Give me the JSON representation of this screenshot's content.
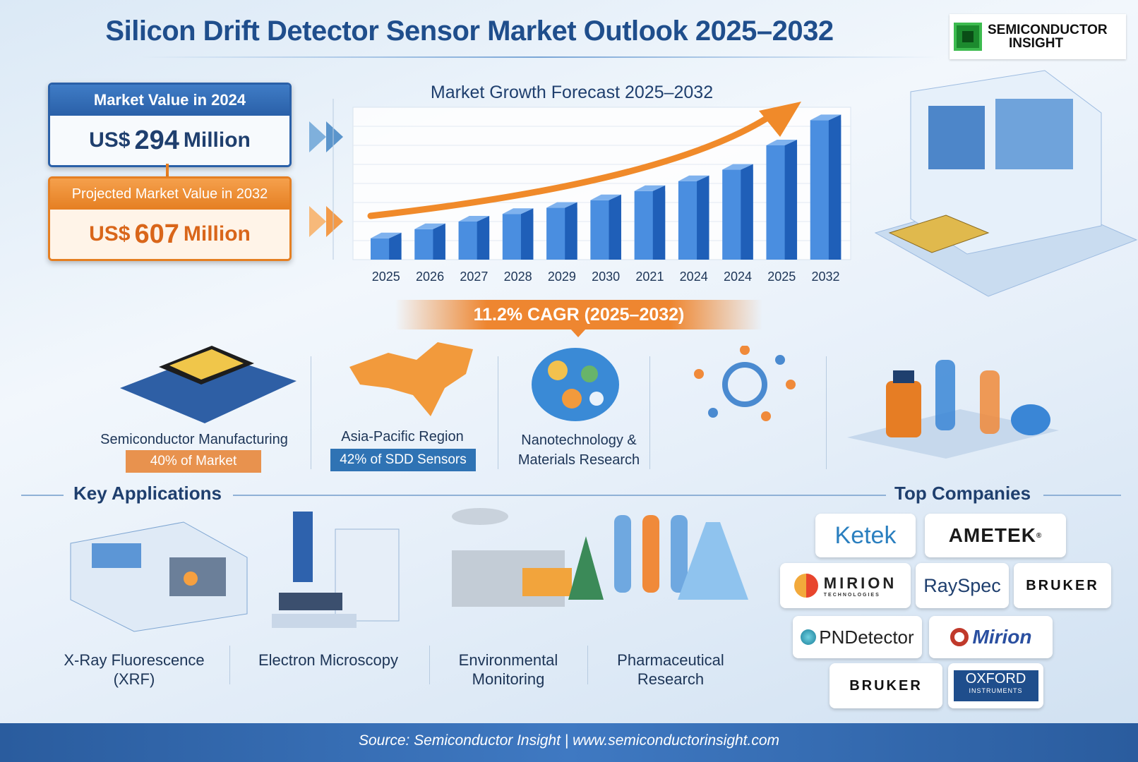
{
  "header": {
    "title": "Silicon Drift Detector Sensor Market Outlook 2025–2032",
    "logo_line1": "SEMICONDUCTOR",
    "logo_line2": "INSIGHT"
  },
  "market_2024": {
    "label": "Market Value in 2024",
    "prefix": "US$",
    "value": "294",
    "unit": "Million"
  },
  "market_2032": {
    "label": "Projected Market Value in 2032",
    "prefix": "US$",
    "value": "607",
    "unit": "Million"
  },
  "cagr": "11.2% CAGR (2025–2032)",
  "colors": {
    "brand_blue": "#2a60a8",
    "accent_orange": "#ee8630",
    "bar_blue": "#2f6fcc"
  },
  "chart_data": {
    "type": "bar",
    "title": "Market Growth Forecast 2025–2032",
    "categories": [
      "2025",
      "2026",
      "2027",
      "2028",
      "2029",
      "2030",
      "2021",
      "2024",
      "2024",
      "2025",
      "2032"
    ],
    "values": [
      28,
      40,
      50,
      60,
      68,
      78,
      90,
      103,
      118,
      150,
      183
    ],
    "xlabel": "",
    "ylabel": "",
    "grid": true,
    "trend_arrow": true
  },
  "segments": [
    {
      "label": "Semiconductor Manufacturing",
      "badge": "40% of Market",
      "icon": "chip-icon"
    },
    {
      "label": "Asia-Pacific Region",
      "badge": "42% of SDD Sensors",
      "icon": "asia-map-icon"
    },
    {
      "label_line1": "Nanotechnology &",
      "label_line2": "Materials Research",
      "icon": "nanostructure-globe-icon"
    },
    {
      "icon": "molecule-icon"
    },
    {
      "icon": "lab-bottles-icon"
    }
  ],
  "key_applications": {
    "title": "Key Applications",
    "items": [
      {
        "line1": "X-Ray Fluorescence",
        "line2": "(XRF)",
        "icon": "xrf-analyzer-icon"
      },
      {
        "line1": "Electron Microscopy",
        "line2": "",
        "icon": "microscope-icon"
      },
      {
        "line1": "Environmental",
        "line2": "Monitoring",
        "icon": "factory-icon"
      },
      {
        "line1": "Pharmaceutical",
        "line2": "Research",
        "icon": "test-tubes-icon"
      }
    ]
  },
  "top_companies": {
    "title": "Top Companies",
    "items": [
      "Ketek",
      "AMETEK",
      "MIRION",
      "RaySpec",
      "BRUKER",
      "PNDetector",
      "Mirion",
      "BRUKER",
      "OXFORD"
    ],
    "mirion_sub": "TECHNOLOGIES",
    "oxford_sub": "INSTRUMENTS",
    "ametek_mark": "®"
  },
  "footer": "Source: Semiconductor Insight  |  www.semiconductorinsight.com"
}
